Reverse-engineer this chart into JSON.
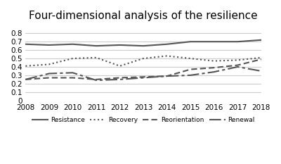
{
  "title": "Four-dimensional analysis of the resilience",
  "years": [
    2008,
    2009,
    2010,
    2011,
    2012,
    2013,
    2014,
    2015,
    2016,
    2017,
    2018
  ],
  "resistance": [
    0.67,
    0.66,
    0.67,
    0.65,
    0.66,
    0.65,
    0.67,
    0.7,
    0.7,
    0.7,
    0.72
  ],
  "recovery": [
    0.41,
    0.43,
    0.5,
    0.51,
    0.41,
    0.5,
    0.53,
    0.5,
    0.47,
    0.48,
    0.51
  ],
  "reorientation": [
    0.25,
    0.27,
    0.27,
    0.25,
    0.27,
    0.28,
    0.29,
    0.37,
    0.39,
    0.42,
    0.49
  ],
  "renewal": [
    0.25,
    0.32,
    0.33,
    0.24,
    0.25,
    0.27,
    0.29,
    0.3,
    0.34,
    0.4,
    0.35
  ],
  "ylim": [
    0,
    0.9
  ],
  "yticks": [
    0,
    0.1,
    0.2,
    0.3,
    0.4,
    0.5,
    0.6,
    0.7,
    0.8
  ],
  "line_color": "#555555",
  "bg_color": "#ffffff",
  "title_fontsize": 11
}
